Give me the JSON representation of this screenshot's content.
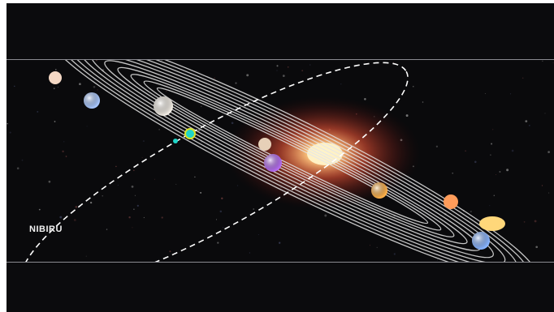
{
  "scene": {
    "label": "NIBIRU",
    "colors": {
      "background": "#0b0b0d",
      "orbit": "#e6e6e6",
      "nibiru_orbit": "#ffffff",
      "sun_core": "#fff1c0",
      "sun_glow": "#ff5a3a"
    },
    "planets": [
      {
        "color": "#f4d8c4"
      },
      {
        "color": "#a9c8ff"
      },
      {
        "color": "#f3eee6"
      },
      {
        "color": "#1fd6c9"
      },
      {
        "color": "#e7d0b8"
      },
      {
        "color": "#b56cf0"
      },
      {
        "color": "#ffb14a"
      },
      {
        "color": "#ff9c5a"
      },
      {
        "color": "#ffd77a"
      },
      {
        "color": "#88b4ff"
      }
    ]
  }
}
